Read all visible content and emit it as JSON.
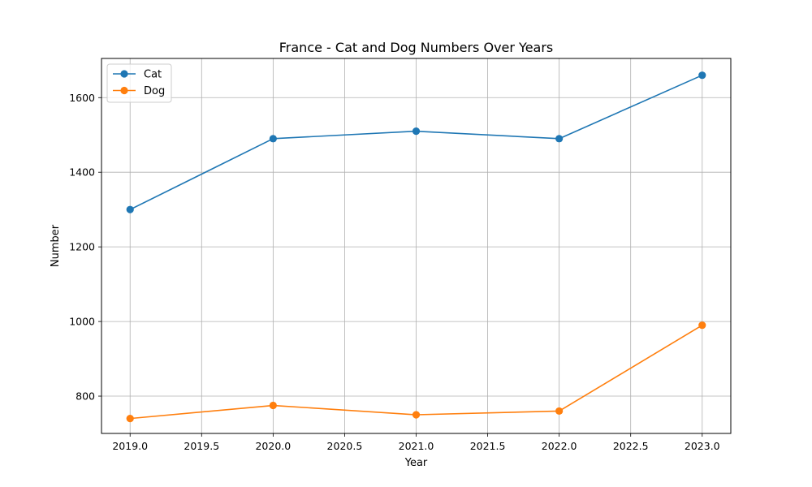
{
  "chart_data": {
    "type": "line",
    "title": "France - Cat and Dog Numbers Over Years",
    "xlabel": "Year",
    "ylabel": "Number",
    "x": [
      2019,
      2020,
      2021,
      2022,
      2023
    ],
    "xlim": [
      2018.8,
      2023.2
    ],
    "ylim": [
      700,
      1705
    ],
    "x_ticks": [
      "2019.0",
      "2019.5",
      "2020.0",
      "2020.5",
      "2021.0",
      "2021.5",
      "2022.0",
      "2022.5",
      "2023.0"
    ],
    "y_ticks": [
      "800",
      "1000",
      "1200",
      "1400",
      "1600"
    ],
    "grid": true,
    "legend_position": "top-left",
    "series": [
      {
        "name": "Cat",
        "values": [
          1300,
          1490,
          1510,
          1490,
          1660
        ],
        "color": "#1f77b4",
        "marker": "circle"
      },
      {
        "name": "Dog",
        "values": [
          740,
          775,
          750,
          760,
          990
        ],
        "color": "#ff7f0e",
        "marker": "circle"
      }
    ]
  }
}
